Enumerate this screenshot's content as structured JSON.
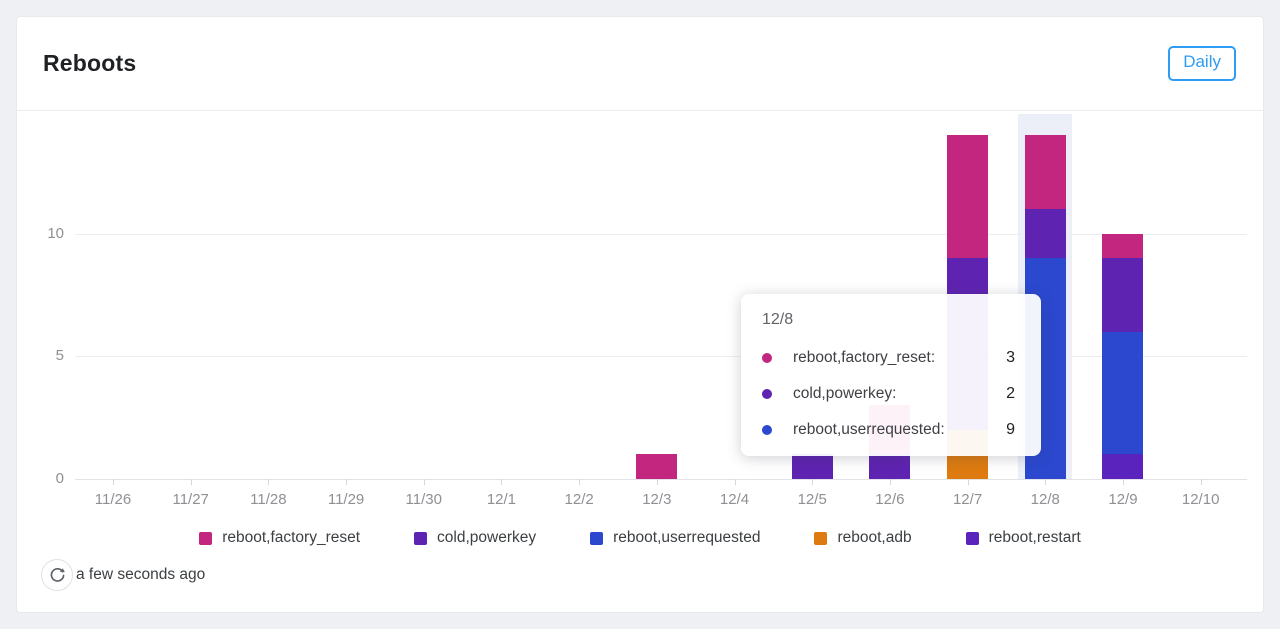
{
  "page": {
    "background_color": "#eef0f4"
  },
  "header": {
    "title": "Reboots",
    "range_button_label": "Daily",
    "accent_color": "#2e9cf4"
  },
  "chart_data": {
    "type": "bar",
    "stacked": true,
    "title": "Reboots",
    "xlabel": "",
    "ylabel": "",
    "yticks": [
      0,
      5,
      10
    ],
    "ylim": [
      0,
      14.2
    ],
    "grid": "horizontal",
    "legend_position": "bottom",
    "highlighted_category": "12/8",
    "categories": [
      "11/26",
      "11/27",
      "11/28",
      "11/29",
      "11/30",
      "12/1",
      "12/2",
      "12/3",
      "12/4",
      "12/5",
      "12/6",
      "12/7",
      "12/8",
      "12/9",
      "12/10"
    ],
    "series": [
      {
        "name": "reboot,factory_reset",
        "color": "#c2267f",
        "values": [
          0,
          0,
          0,
          0,
          0,
          0,
          0,
          1,
          0,
          0,
          2,
          5,
          3,
          1,
          0
        ]
      },
      {
        "name": "cold,powerkey",
        "color": "#5e23b1",
        "values": [
          0,
          0,
          0,
          0,
          0,
          0,
          0,
          0,
          0,
          1,
          1,
          7,
          2,
          3,
          0
        ]
      },
      {
        "name": "reboot,userrequested",
        "color": "#2b48cf",
        "values": [
          0,
          0,
          0,
          0,
          0,
          0,
          0,
          0,
          0,
          0,
          0,
          0,
          9,
          5,
          0
        ]
      },
      {
        "name": "reboot,adb",
        "color": "#de7b10",
        "values": [
          0,
          0,
          0,
          0,
          0,
          0,
          0,
          0,
          0,
          0,
          0,
          2,
          0,
          0,
          0
        ]
      },
      {
        "name": "reboot,restart",
        "color": "#5a23bd",
        "values": [
          0,
          0,
          0,
          0,
          0,
          0,
          0,
          0,
          0,
          0,
          0,
          0,
          0,
          1,
          0
        ]
      }
    ]
  },
  "tooltip": {
    "title": "12/8",
    "rows": [
      {
        "label": "reboot,factory_reset:",
        "value": "3",
        "color": "#c2267f"
      },
      {
        "label": "cold,powerkey:",
        "value": "2",
        "color": "#5e23b1"
      },
      {
        "label": "reboot,userrequested:",
        "value": "9",
        "color": "#2b48cf"
      }
    ]
  },
  "footer": {
    "refreshed_text": "a few seconds ago"
  }
}
